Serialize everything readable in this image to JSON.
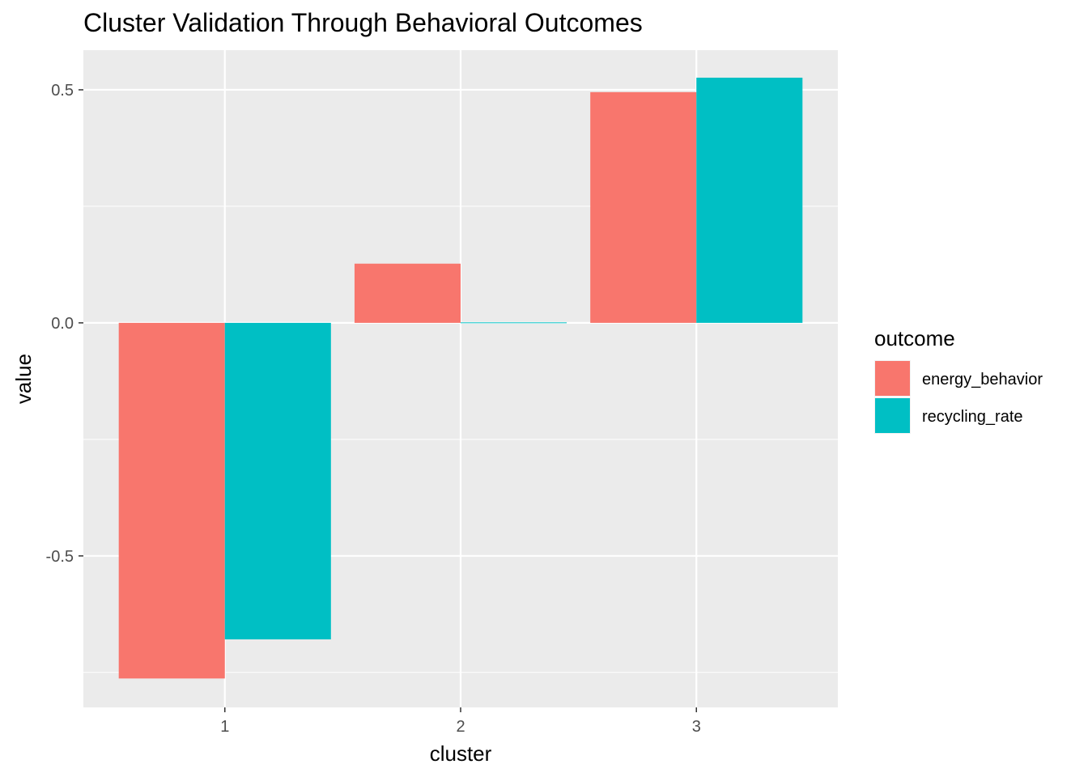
{
  "chart_data": {
    "type": "bar",
    "title": "Cluster Validation Through Behavioral Outcomes",
    "xlabel": "cluster",
    "ylabel": "value",
    "categories": [
      "1",
      "2",
      "3"
    ],
    "series": [
      {
        "name": "energy_behavior",
        "color": "#F8766D",
        "values": [
          -0.763,
          0.127,
          0.495
        ]
      },
      {
        "name": "recycling_rate",
        "color": "#00BFC4",
        "values": [
          -0.679,
          0.001,
          0.526
        ]
      }
    ],
    "ylim": [
      -0.825,
      0.585
    ],
    "yticks": [
      -0.5,
      0.0,
      0.5
    ],
    "ytick_labels": [
      "-0.5",
      "0.0",
      "0.5"
    ],
    "grid": true,
    "legend": {
      "title": "outcome",
      "position": "right"
    }
  }
}
